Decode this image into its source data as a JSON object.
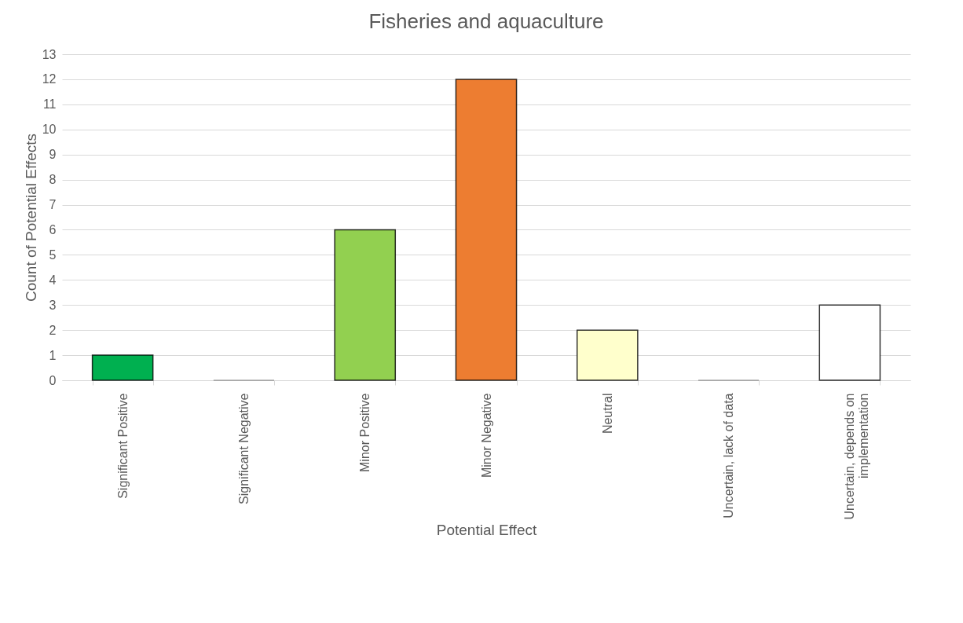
{
  "chart_data": {
    "type": "bar",
    "title": "Fisheries and aquaculture",
    "xlabel": "Potential Effect",
    "ylabel": "Count of Potential Effects",
    "categories": [
      "Significant Positive",
      "Significant Negative",
      "Minor Positive",
      "Minor Negative",
      "Neutral",
      "Uncertain, lack of data",
      "Uncertain, depends on implementation"
    ],
    "values": [
      1,
      0,
      6,
      12,
      2,
      0,
      3
    ],
    "colors": [
      "#00b050",
      null,
      "#92d050",
      "#ed7d31",
      "#ffffcc",
      null,
      "#ffffff"
    ],
    "ylim": [
      0,
      13
    ],
    "yticks": [
      0,
      1,
      2,
      3,
      4,
      5,
      6,
      7,
      8,
      9,
      10,
      11,
      12,
      13
    ],
    "grid": "y"
  }
}
